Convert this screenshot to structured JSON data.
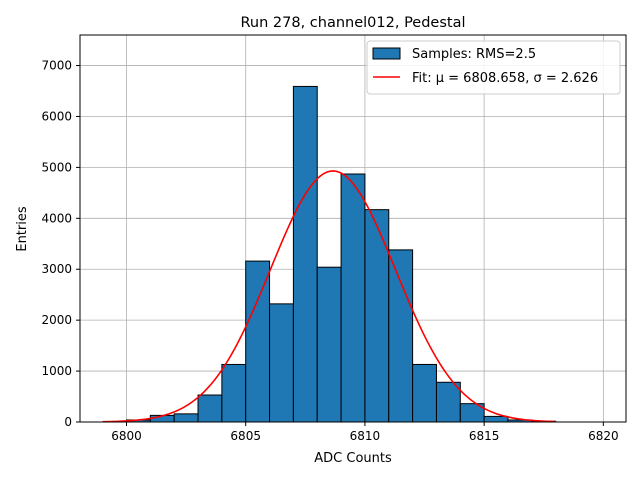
{
  "chart_data": {
    "type": "bar",
    "title": "Run 278, channel012, Pedestal",
    "xlabel": "ADC Counts",
    "ylabel": "Entries",
    "xlim": [
      6798.05,
      6820.95
    ],
    "ylim": [
      0,
      7600
    ],
    "xticks": [
      6800,
      6805,
      6810,
      6815,
      6820
    ],
    "yticks": [
      0,
      1000,
      2000,
      3000,
      4000,
      5000,
      6000,
      7000
    ],
    "grid": true,
    "legend_position": "top-right",
    "bins": [
      {
        "left": 6800,
        "right": 6801,
        "count": 40
      },
      {
        "left": 6801,
        "right": 6802,
        "count": 130
      },
      {
        "left": 6802,
        "right": 6803,
        "count": 160
      },
      {
        "left": 6803,
        "right": 6804,
        "count": 530
      },
      {
        "left": 6804,
        "right": 6805,
        "count": 1130
      },
      {
        "left": 6805,
        "right": 6806,
        "count": 3160
      },
      {
        "left": 6806,
        "right": 6807,
        "count": 2320
      },
      {
        "left": 6807,
        "right": 6808,
        "count": 6590
      },
      {
        "left": 6808,
        "right": 6809,
        "count": 3040
      },
      {
        "left": 6809,
        "right": 6810,
        "count": 4870
      },
      {
        "left": 6810,
        "right": 6811,
        "count": 4170
      },
      {
        "left": 6811,
        "right": 6812,
        "count": 3380
      },
      {
        "left": 6812,
        "right": 6813,
        "count": 1130
      },
      {
        "left": 6813,
        "right": 6814,
        "count": 780
      },
      {
        "left": 6814,
        "right": 6815,
        "count": 360
      },
      {
        "left": 6815,
        "right": 6816,
        "count": 110
      },
      {
        "left": 6816,
        "right": 6817,
        "count": 40
      },
      {
        "left": 6817,
        "right": 6818,
        "count": 15
      }
    ],
    "fit": {
      "mu": 6808.658,
      "sigma": 2.626,
      "amplitude": 4930,
      "x_range": [
        6799,
        6818
      ]
    },
    "series": [
      {
        "name": "Samples: RMS=2.5",
        "kind": "histogram",
        "color": "#1f77b4"
      },
      {
        "name": "Fit: μ = 6808.658, σ = 2.626",
        "kind": "line",
        "color": "#ff0000"
      }
    ]
  }
}
